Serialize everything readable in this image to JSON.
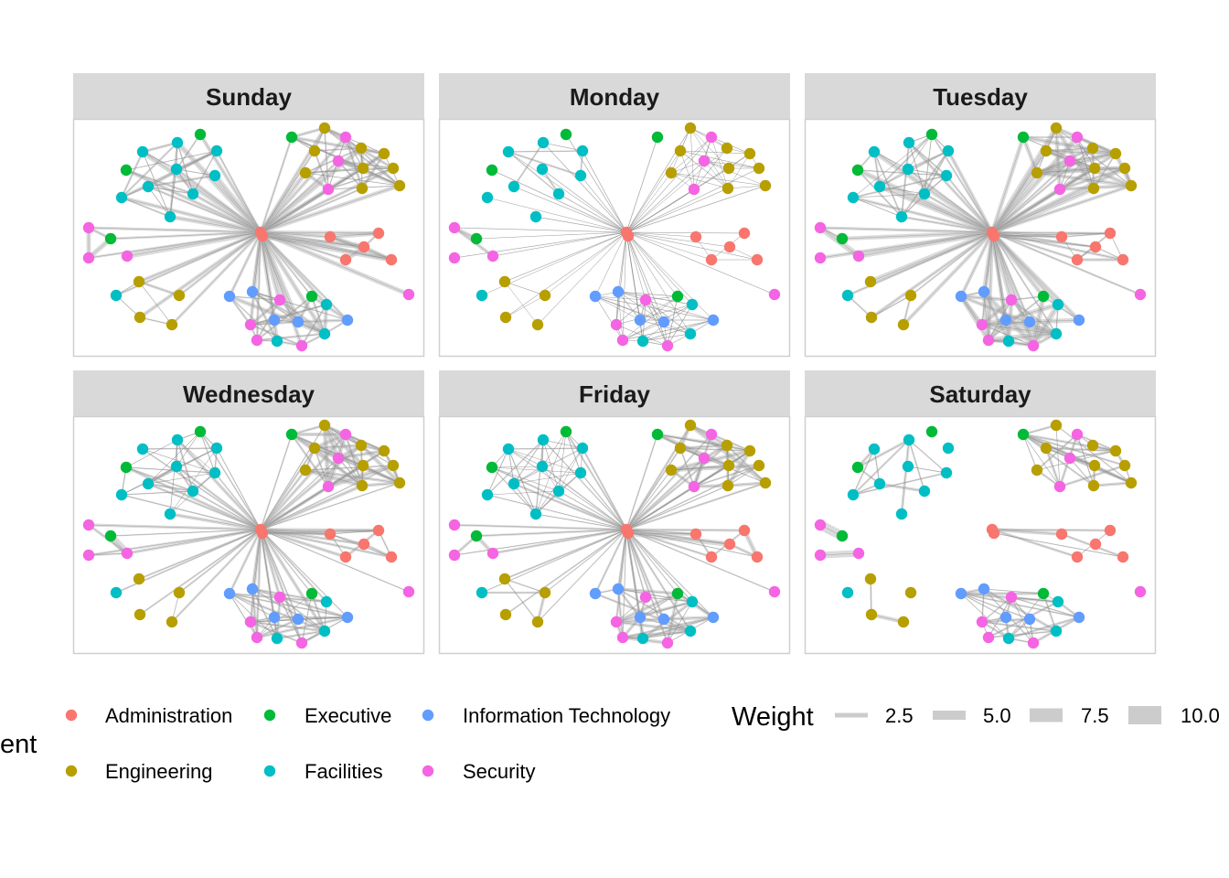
{
  "departments": {
    "Administration": "#F8766D",
    "Engineering": "#B79F00",
    "Executive": "#00BA38",
    "Facilities": "#00BFC4",
    "Information Technology": "#619CFF",
    "Security": "#F564E3"
  },
  "nodes": [
    "Administration",
    "Administration",
    "Administration",
    "Administration",
    "Administration",
    "Administration",
    "Administration",
    "Engineering",
    "Engineering",
    "Engineering",
    "Engineering",
    "Engineering",
    "Engineering",
    "Engineering",
    "Engineering",
    "Engineering",
    "Security",
    "Security",
    "Security",
    "Executive",
    "Executive",
    "Executive",
    "Executive",
    "Executive",
    "Facilities",
    "Facilities",
    "Facilities",
    "Facilities",
    "Facilities",
    "Facilities",
    "Facilities",
    "Facilities",
    "Facilities",
    "Security",
    "Security",
    "Security",
    "Engineering",
    "Engineering",
    "Engineering",
    "Engineering",
    "Facilities",
    "Security",
    "Information Technology",
    "Information Technology",
    "Information Technology",
    "Information Technology",
    "Information Technology",
    "Security",
    "Security",
    "Security",
    "Security",
    "Facilities",
    "Facilities",
    "Facilities"
  ],
  "facets": [
    {
      "title": "Sunday",
      "hub_weight": 3,
      "clusters": [
        {
          "nodes": [
            7,
            8,
            9,
            10,
            11,
            12,
            13,
            14,
            15,
            16,
            17,
            18,
            19
          ],
          "weight": 2.5
        },
        {
          "nodes": [
            20,
            21,
            24,
            25,
            26,
            27,
            28,
            29,
            30,
            31,
            32
          ],
          "weight": 2
        },
        {
          "nodes": [
            22,
            33,
            34,
            35
          ],
          "weight": 4
        },
        {
          "nodes": [
            36,
            37,
            38,
            39,
            40
          ],
          "weight": 2
        },
        {
          "nodes": [
            23,
            42,
            43,
            44,
            45,
            46,
            47,
            48,
            49,
            50,
            51,
            52,
            53
          ],
          "weight": 3
        },
        {
          "nodes": [
            1,
            2,
            3,
            4,
            5,
            6
          ],
          "weight": 4
        }
      ]
    },
    {
      "title": "Monday",
      "hub_weight": 0.6,
      "clusters": [
        {
          "nodes": [
            7,
            8,
            9,
            10,
            11,
            12,
            13,
            14,
            15,
            16,
            17,
            18
          ],
          "weight": 0.6
        },
        {
          "nodes": [
            24,
            25,
            26,
            27,
            28,
            29,
            30
          ],
          "weight": 1.5
        },
        {
          "nodes": [
            22,
            33,
            34,
            35
          ],
          "weight": 8
        },
        {
          "nodes": [
            36,
            37,
            38,
            39,
            40
          ],
          "weight": 0.6
        },
        {
          "nodes": [
            23,
            42,
            43,
            44,
            45,
            46,
            47,
            48,
            49,
            50,
            51,
            52,
            53
          ],
          "weight": 0.8
        },
        {
          "nodes": [
            2,
            3,
            4,
            5,
            6
          ],
          "weight": 0.6
        }
      ]
    },
    {
      "title": "Tuesday",
      "hub_weight": 3,
      "clusters": [
        {
          "nodes": [
            7,
            8,
            9,
            10,
            11,
            12,
            13,
            14,
            15,
            16,
            17,
            18,
            19
          ],
          "weight": 3
        },
        {
          "nodes": [
            20,
            21,
            24,
            25,
            26,
            27,
            28,
            29,
            30,
            31,
            32
          ],
          "weight": 1.5
        },
        {
          "nodes": [
            22,
            33,
            34,
            35
          ],
          "weight": 4
        },
        {
          "nodes": [
            36,
            37,
            38,
            39,
            40
          ],
          "weight": 1.5
        },
        {
          "nodes": [
            23,
            42,
            43,
            44,
            45,
            46,
            47,
            48,
            49,
            50,
            51,
            52,
            53
          ],
          "weight": 4
        },
        {
          "nodes": [
            1,
            2,
            3,
            4,
            5,
            6
          ],
          "weight": 2
        }
      ]
    },
    {
      "title": "Wednesday",
      "hub_weight": 2,
      "clusters": [
        {
          "nodes": [
            7,
            8,
            9,
            10,
            11,
            12,
            13,
            14,
            15,
            16,
            17,
            18,
            19
          ],
          "weight": 3
        },
        {
          "nodes": [
            20,
            21,
            24,
            25,
            26,
            27,
            28,
            29,
            30,
            31,
            32
          ],
          "weight": 1.5
        },
        {
          "nodes": [
            22,
            33,
            34,
            35
          ],
          "weight": 5
        },
        {
          "nodes": [
            36,
            37,
            38,
            39,
            40
          ],
          "weight": 1.5
        },
        {
          "nodes": [
            23,
            42,
            43,
            44,
            45,
            46,
            47,
            48,
            49,
            50,
            51,
            52,
            53
          ],
          "weight": 2
        },
        {
          "nodes": [
            1,
            2,
            3,
            4,
            5,
            6
          ],
          "weight": 2
        }
      ]
    },
    {
      "title": "Friday",
      "hub_weight": 1.5,
      "clusters": [
        {
          "nodes": [
            7,
            8,
            9,
            10,
            11,
            12,
            13,
            14,
            15,
            16,
            17,
            18,
            19
          ],
          "weight": 3
        },
        {
          "nodes": [
            20,
            21,
            24,
            25,
            26,
            27,
            28,
            29,
            30,
            31,
            32
          ],
          "weight": 1
        },
        {
          "nodes": [
            22,
            33,
            34,
            35
          ],
          "weight": 3
        },
        {
          "nodes": [
            36,
            37,
            38,
            39,
            40
          ],
          "weight": 2.5
        },
        {
          "nodes": [
            23,
            42,
            43,
            44,
            45,
            46,
            47,
            48,
            49,
            50,
            51,
            52,
            53
          ],
          "weight": 2.5
        },
        {
          "nodes": [
            1,
            2,
            3,
            4,
            5,
            6
          ],
          "weight": 4
        }
      ]
    },
    {
      "title": "Saturday",
      "hub_weight": 0,
      "clusters": [
        {
          "nodes": [
            7,
            8,
            9,
            10,
            11,
            12,
            13,
            14,
            15,
            16,
            17,
            18,
            19
          ],
          "weight": 2
        },
        {
          "nodes": [
            21,
            24,
            25,
            27,
            28,
            29,
            30,
            31,
            32
          ],
          "weight": 2
        },
        {
          "nodes": [
            22,
            33,
            34,
            35
          ],
          "weight": 7
        },
        {
          "nodes": [
            36,
            37,
            38,
            39
          ],
          "weight": 4
        },
        {
          "nodes": [
            23,
            42,
            43,
            44,
            45,
            46,
            47,
            48,
            49,
            50,
            51,
            52,
            53
          ],
          "weight": 2
        },
        {
          "nodes": [
            0,
            1,
            2,
            3,
            4,
            5,
            6
          ],
          "weight": 2.5
        }
      ]
    }
  ],
  "legend": {
    "department_title_visible": "ent",
    "department_items": [
      "Administration",
      "Executive",
      "Information Technology",
      "Engineering",
      "Facilities",
      "Security"
    ],
    "weight_title": "Weight",
    "weight_items": [
      {
        "label": "2.5",
        "value": 2.5
      },
      {
        "label": "5.0",
        "value": 5.0
      },
      {
        "label": "7.5",
        "value": 7.5
      },
      {
        "label": "10.0",
        "value": 10.0
      }
    ]
  }
}
